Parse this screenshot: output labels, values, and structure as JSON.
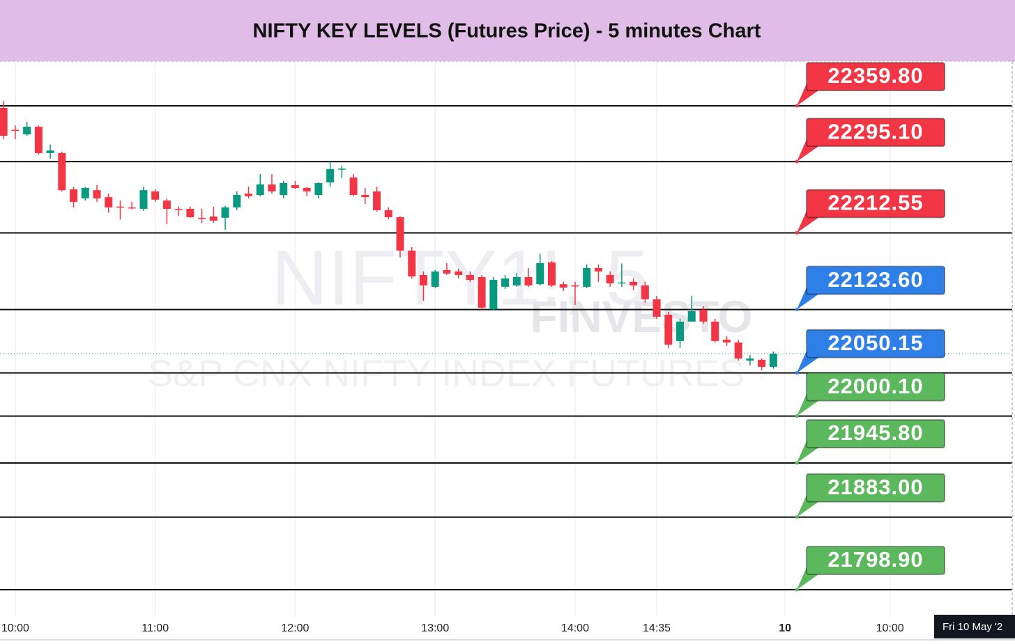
{
  "chart_data": {
    "type": "candlestick",
    "title": "NIFTY KEY LEVELS (Futures Price) - 5 minutes Chart",
    "watermark": {
      "symbol": "NIFTY1!, 5",
      "brand": "FINVESTO",
      "description": "S&P CNX NIFTY INDEX FUTURES"
    },
    "crosshair_label": "Fri 10 May '2",
    "up_color": "#089981",
    "down_color": "#f23645",
    "x": [
      -1,
      0,
      1,
      2,
      3,
      4,
      5,
      6,
      7,
      8,
      9,
      10,
      11,
      12,
      13,
      14,
      15,
      16,
      17,
      18,
      19,
      20,
      21,
      22,
      23,
      24,
      25,
      26,
      27,
      28,
      29,
      30,
      31,
      32,
      33,
      34,
      35,
      36,
      37,
      38,
      39,
      40,
      41,
      42,
      43,
      44,
      45,
      46,
      47,
      48,
      49,
      50,
      51,
      52,
      53,
      54,
      55,
      56,
      57,
      58,
      59,
      60,
      61,
      62,
      63,
      64,
      65
    ],
    "open": [
      22357.4,
      22332,
      22326.7,
      22335.6,
      22305,
      22305,
      22263,
      22252.5,
      22262,
      22254,
      22243,
      22242,
      22240.4,
      22260.6,
      22250,
      22240.4,
      22240.4,
      22230,
      22231.5,
      22230,
      22242,
      22258,
      22256.5,
      22268.7,
      22256.5,
      22267.8,
      22264.6,
      22256.5,
      22271,
      22286.4,
      22276.7,
      22256.5,
      22260.6,
      22238.8,
      22230.7,
      22192,
      22163.7,
      22150,
      22169.4,
      22167.8,
      22163.7,
      22161.3,
      22124,
      22150,
      22151.6,
      22161.3,
      22153,
      22178.3,
      22153,
      22151.6,
      22150,
      22171.8,
      22163.7,
      22154,
      22155.7,
      22151.6,
      22135.5,
      22117.7,
      22087.1,
      22109.7,
      22123.4,
      22109.7,
      22088.7,
      22085.5,
      22064.5,
      22065.3,
      22057.2
    ],
    "high": [
      22365.5,
      22337,
      22341.3,
      22337,
      22315,
      22306.6,
      22266,
      22266,
      22268,
      22258,
      22250,
      22248.5,
      22266,
      22263,
      22252.5,
      22243,
      22243,
      22240.4,
      22242.8,
      22244,
      22260.6,
      22266,
      22280.8,
      22280.8,
      22272.7,
      22272.7,
      22266,
      22271,
      22295.3,
      22290.4,
      22280.8,
      22264.6,
      22266,
      22242,
      22232,
      22196,
      22167.8,
      22169.4,
      22177.5,
      22171,
      22167.8,
      22163.7,
      22161.3,
      22163.7,
      22166,
      22171.8,
      22188,
      22179.9,
      22155.7,
      22155.7,
      22175.9,
      22175.9,
      22167.8,
      22177,
      22159.7,
      22155.7,
      22139.5,
      22121,
      22113,
      22139.5,
      22127.4,
      22113,
      22092.7,
      22088.7,
      22070.9,
      22066.9,
      22075
    ],
    "low": [
      22321.1,
      22321,
      22325.1,
      22303,
      22298.5,
      22260.6,
      22242,
      22250,
      22248.5,
      22236,
      22228,
      22240,
      22238,
      22248.5,
      22222.6,
      22232,
      22230,
      22224,
      22224,
      22216,
      22238.8,
      22252.5,
      22255,
      22258,
      22252.5,
      22263,
      22255,
      22252.5,
      22266,
      22276,
      22255,
      22246,
      22237.2,
      22228.3,
      22184,
      22159.7,
      22133.9,
      22148.4,
      22163.7,
      22159.7,
      22155.7,
      22124,
      22122.6,
      22147.6,
      22150,
      22150,
      22151.6,
      22150,
      22145.2,
      22129,
      22148.4,
      22155.7,
      22150,
      22150,
      22146,
      22131.5,
      22112.9,
      22079,
      22079,
      22111.3,
      22107,
      22085.5,
      22081.4,
      22064.5,
      22058.8,
      22053.2,
      22055
    ],
    "close": [
      22325.1,
      22331,
      22335.6,
      22305,
      22308,
      22262,
      22248.5,
      22264.6,
      22252.5,
      22242,
      22242,
      22241.5,
      22262,
      22251,
      22240.4,
      22240,
      22230.7,
      22229.5,
      22226.7,
      22242,
      22256.5,
      22255,
      22268.7,
      22260.6,
      22270.3,
      22264.6,
      22260.6,
      22270.3,
      22286.4,
      22287,
      22256.5,
      22254,
      22238.8,
      22230.7,
      22192,
      22162,
      22151.6,
      22167.8,
      22165.4,
      22163.7,
      22158,
      22125.8,
      22158,
      22159.7,
      22161.3,
      22151.6,
      22177.5,
      22151.6,
      22149,
      22151,
      22171.8,
      22167.8,
      22154,
      22155,
      22151.6,
      22135.5,
      22115.3,
      22083,
      22109.7,
      22121.8,
      22109.7,
      22087.1,
      22085.5,
      22066.9,
      22066.9,
      22057.2,
      22072.5
    ],
    "xlim": [
      -1.31,
      85.48
    ],
    "ylim": [
      21768.2,
      22411.45
    ],
    "xticks": [
      {
        "value": 0,
        "label": "10:00"
      },
      {
        "value": 12,
        "label": "11:00"
      },
      {
        "value": 24,
        "label": "12:00"
      },
      {
        "value": 36,
        "label": "13:00"
      },
      {
        "value": 48,
        "label": "14:00"
      },
      {
        "value": 55,
        "label": "14:35"
      },
      {
        "value": 66,
        "label": "10"
      },
      {
        "value": 75,
        "label": "10:00"
      }
    ],
    "levels": [
      {
        "value": 22359.8,
        "label": "22359.80",
        "color": "#f23645"
      },
      {
        "value": 22295.1,
        "label": "22295.10",
        "color": "#f23645"
      },
      {
        "value": 22212.55,
        "label": "22212.55",
        "color": "#f23645"
      },
      {
        "value": 22123.6,
        "label": "22123.60",
        "color": "#2f7fe8"
      },
      {
        "value": 22050.15,
        "label": "22050.15",
        "color": "#2f7fe8"
      },
      {
        "value": 22000.1,
        "label": "22000.10",
        "color": "#5cb85c"
      },
      {
        "value": 21945.8,
        "label": "21945.80",
        "color": "#5cb85c"
      },
      {
        "value": 21883,
        "label": "21883.00",
        "color": "#5cb85c"
      },
      {
        "value": 21798.9,
        "label": "21798.90",
        "color": "#5cb85c"
      }
    ]
  }
}
